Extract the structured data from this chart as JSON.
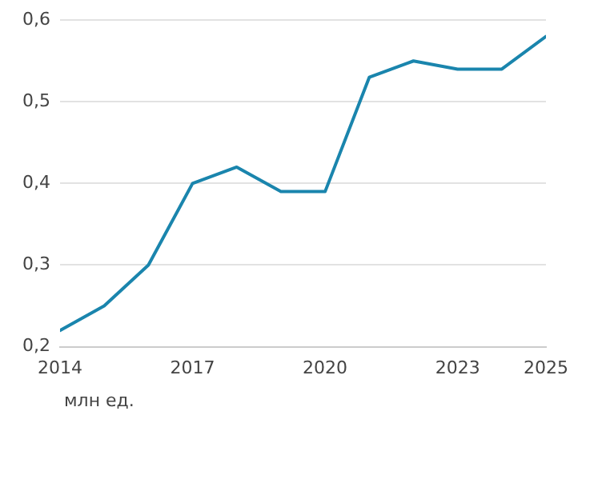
{
  "chart_data": {
    "type": "line",
    "x": [
      2014,
      2015,
      2016,
      2017,
      2018,
      2019,
      2020,
      2021,
      2022,
      2023,
      2024,
      2025
    ],
    "series": [
      {
        "color": "#1a85ad",
        "values": [
          0.22,
          0.25,
          0.3,
          0.4,
          0.42,
          0.39,
          0.39,
          0.53,
          0.55,
          0.54,
          0.54,
          0.58
        ]
      }
    ],
    "xlim": [
      2014,
      2025
    ],
    "xticks": [
      2014,
      2017,
      2020,
      2023,
      2025
    ],
    "ylim": [
      0.2,
      0.6
    ],
    "yticks": [
      {
        "value": 0.2,
        "label": "0,2"
      },
      {
        "value": 0.3,
        "label": "0,3"
      },
      {
        "value": 0.4,
        "label": "0,4"
      },
      {
        "value": 0.5,
        "label": "0,5"
      },
      {
        "value": 0.6,
        "label": "0,6"
      }
    ],
    "grid": "y",
    "legend": false,
    "marker": "none",
    "line_style": "solid",
    "annotations": [
      "млн ед."
    ]
  }
}
